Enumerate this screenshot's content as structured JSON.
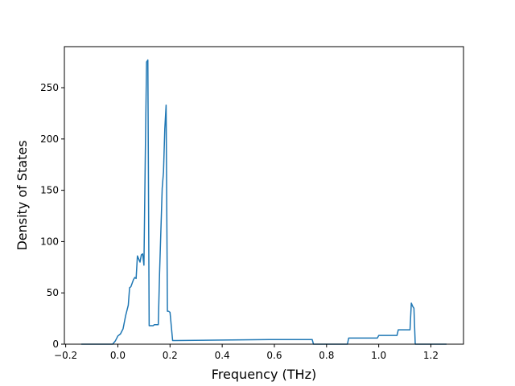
{
  "chart_data": {
    "type": "line",
    "title": "",
    "xlabel": "Frequency (THz)",
    "ylabel": "Density of States",
    "xlim": [
      -0.205,
      1.325
    ],
    "ylim": [
      0,
      290
    ],
    "xticks": [
      -0.2,
      0.0,
      0.2,
      0.4,
      0.6,
      0.8,
      1.0,
      1.2
    ],
    "xtick_labels": [
      "−0.2",
      "0.0",
      "0.2",
      "0.4",
      "0.6",
      "0.8",
      "1.0",
      "1.2"
    ],
    "yticks": [
      0,
      50,
      100,
      150,
      200,
      250
    ],
    "ytick_labels": [
      "0",
      "50",
      "100",
      "150",
      "200",
      "250"
    ],
    "grid": false,
    "legend": "none",
    "series": [
      {
        "color": "#1f77b4",
        "x": [
          -0.14,
          -0.02,
          -0.01,
          0.0,
          0.01,
          0.02,
          0.03,
          0.04,
          0.045,
          0.05,
          0.06,
          0.065,
          0.07,
          0.075,
          0.085,
          0.09,
          0.095,
          0.1,
          0.105,
          0.11,
          0.115,
          0.12,
          0.125,
          0.13,
          0.135,
          0.14,
          0.155,
          0.16,
          0.17,
          0.175,
          0.18,
          0.185,
          0.19,
          0.195,
          0.2,
          0.21,
          0.215,
          0.22,
          0.4,
          0.58,
          0.745,
          0.75,
          0.88,
          0.885,
          0.995,
          1.0,
          1.07,
          1.075,
          1.12,
          1.125,
          1.13,
          1.135,
          1.14,
          1.145,
          1.26
        ],
        "y": [
          0,
          0,
          3,
          8,
          10,
          15,
          28,
          38,
          55,
          56,
          63,
          65,
          64,
          86,
          80,
          87,
          88,
          77,
          180,
          275,
          277,
          18,
          18,
          18,
          18,
          19,
          19,
          70,
          152,
          168,
          210,
          233,
          32,
          32,
          31,
          3.5,
          3.5,
          3.5,
          4,
          4.5,
          4.5,
          0,
          0,
          6,
          6,
          8.5,
          8.5,
          14,
          14,
          40,
          37,
          35,
          0,
          0,
          0
        ]
      }
    ]
  }
}
